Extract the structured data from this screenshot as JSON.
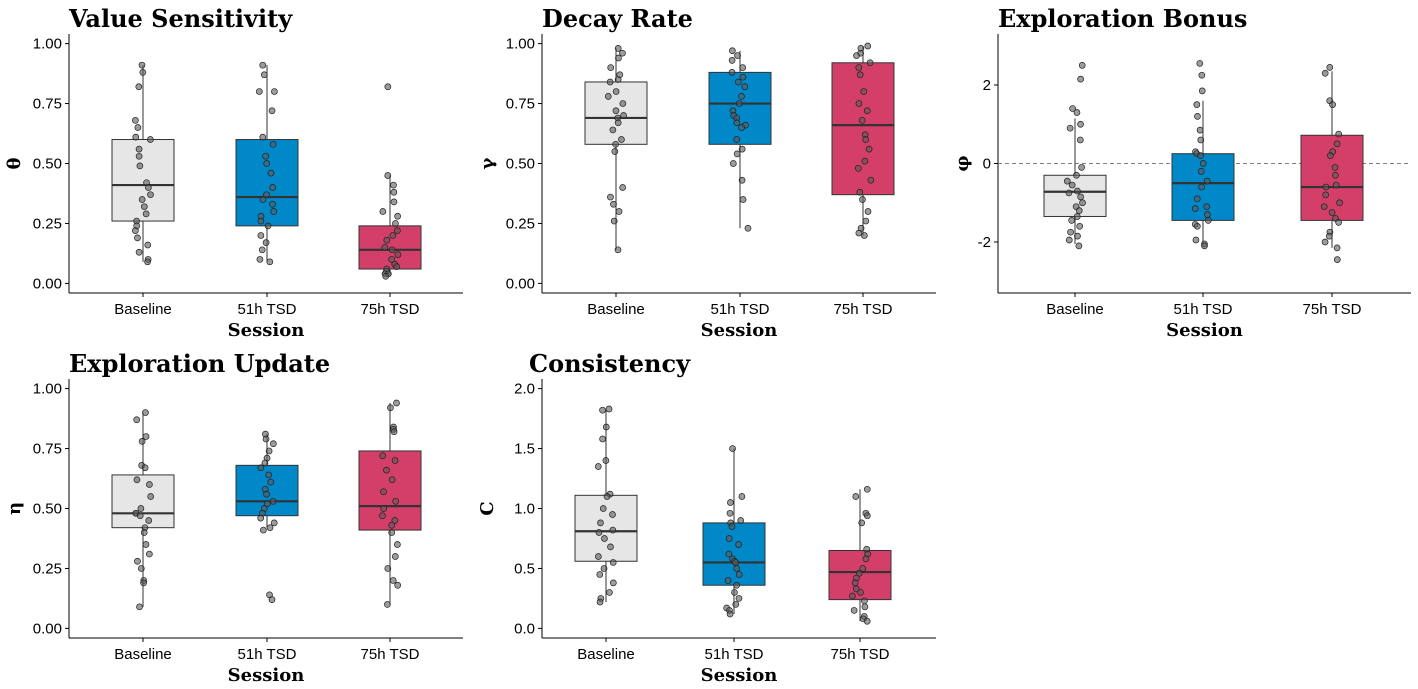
{
  "colors": {
    "Baseline": "#e6e6e6",
    "51h TSD": "#0088c9",
    "75h TSD": "#d43f69"
  },
  "chart_data": [
    {
      "type": "box",
      "title": "Value Sensitivity",
      "xlabel": "Session",
      "ylabel": "θ",
      "categories": [
        "Baseline",
        "51h TSD",
        "75h TSD"
      ],
      "yticks": [
        0.0,
        0.25,
        0.5,
        0.75,
        1.0
      ],
      "ytick_labels": [
        "0.00",
        "0.25",
        "0.50",
        "0.75",
        "1.00"
      ],
      "ylim": [
        -0.04,
        1.04
      ],
      "reference_line": null,
      "boxes": [
        {
          "category": "Baseline",
          "min": 0.09,
          "q1": 0.26,
          "median": 0.41,
          "q3": 0.6,
          "max": 0.91
        },
        {
          "category": "51h TSD",
          "min": 0.09,
          "q1": 0.24,
          "median": 0.36,
          "q3": 0.6,
          "max": 0.91
        },
        {
          "category": "75h TSD",
          "min": 0.03,
          "q1": 0.06,
          "median": 0.14,
          "q3": 0.24,
          "max": 0.45
        }
      ],
      "points": [
        [
          0.91,
          0.88,
          0.82,
          0.68,
          0.65,
          0.61,
          0.6,
          0.56,
          0.53,
          0.49,
          0.42,
          0.4,
          0.37,
          0.35,
          0.32,
          0.29,
          0.26,
          0.24,
          0.22,
          0.19,
          0.16,
          0.13,
          0.1,
          0.09
        ],
        [
          0.91,
          0.87,
          0.8,
          0.8,
          0.72,
          0.61,
          0.58,
          0.53,
          0.5,
          0.46,
          0.4,
          0.37,
          0.35,
          0.33,
          0.3,
          0.28,
          0.26,
          0.24,
          0.2,
          0.17,
          0.14,
          0.1,
          0.09
        ],
        [
          0.82,
          0.45,
          0.41,
          0.38,
          0.34,
          0.3,
          0.28,
          0.25,
          0.22,
          0.2,
          0.18,
          0.15,
          0.14,
          0.12,
          0.1,
          0.08,
          0.07,
          0.06,
          0.05,
          0.04,
          0.04,
          0.03
        ]
      ]
    },
    {
      "type": "box",
      "title": "Decay Rate",
      "xlabel": "Session",
      "ylabel": "γ",
      "categories": [
        "Baseline",
        "51h TSD",
        "75h TSD"
      ],
      "yticks": [
        0.0,
        0.25,
        0.5,
        0.75,
        1.0
      ],
      "ytick_labels": [
        "0.00",
        "0.25",
        "0.50",
        "0.75",
        "1.00"
      ],
      "ylim": [
        -0.04,
        1.04
      ],
      "reference_line": null,
      "boxes": [
        {
          "category": "Baseline",
          "min": 0.14,
          "q1": 0.58,
          "median": 0.69,
          "q3": 0.84,
          "max": 0.98
        },
        {
          "category": "51h TSD",
          "min": 0.23,
          "q1": 0.58,
          "median": 0.75,
          "q3": 0.88,
          "max": 0.97
        },
        {
          "category": "75h TSD",
          "min": 0.2,
          "q1": 0.37,
          "median": 0.66,
          "q3": 0.92,
          "max": 0.99
        }
      ],
      "points": [
        [
          0.98,
          0.96,
          0.94,
          0.9,
          0.87,
          0.85,
          0.84,
          0.8,
          0.78,
          0.75,
          0.72,
          0.7,
          0.69,
          0.67,
          0.64,
          0.6,
          0.58,
          0.55,
          0.4,
          0.36,
          0.33,
          0.3,
          0.26,
          0.14
        ],
        [
          0.97,
          0.95,
          0.93,
          0.9,
          0.88,
          0.86,
          0.84,
          0.82,
          0.78,
          0.75,
          0.72,
          0.7,
          0.69,
          0.67,
          0.66,
          0.65,
          0.6,
          0.56,
          0.54,
          0.5,
          0.43,
          0.35,
          0.23
        ],
        [
          0.99,
          0.98,
          0.96,
          0.95,
          0.92,
          0.9,
          0.87,
          0.8,
          0.75,
          0.72,
          0.68,
          0.62,
          0.6,
          0.56,
          0.51,
          0.48,
          0.43,
          0.38,
          0.35,
          0.3,
          0.26,
          0.23,
          0.21,
          0.2
        ]
      ]
    },
    {
      "type": "box",
      "title": "Exploration Bonus",
      "xlabel": "Session",
      "ylabel": "φ",
      "categories": [
        "Baseline",
        "51h TSD",
        "75h TSD"
      ],
      "yticks": [
        -2,
        0,
        2
      ],
      "ytick_labels": [
        "-2",
        "0",
        "2"
      ],
      "ylim": [
        -3.3,
        3.3
      ],
      "reference_line": 0,
      "boxes": [
        {
          "category": "Baseline",
          "min": -2.05,
          "q1": -1.35,
          "median": -0.72,
          "q3": -0.3,
          "max": 1.15
        },
        {
          "category": "51h TSD",
          "min": -2.05,
          "q1": -1.45,
          "median": -0.5,
          "q3": 0.25,
          "max": 1.6
        },
        {
          "category": "75h TSD",
          "min": -2.15,
          "q1": -1.45,
          "median": -0.6,
          "q3": 0.72,
          "max": 2.35
        }
      ],
      "points": [
        [
          2.5,
          2.15,
          1.4,
          1.3,
          1.0,
          0.9,
          0.6,
          -0.1,
          -0.3,
          -0.45,
          -0.55,
          -0.7,
          -0.75,
          -0.85,
          -1.0,
          -1.1,
          -1.2,
          -1.35,
          -1.45,
          -1.6,
          -1.75,
          -1.85,
          -1.95,
          -2.1
        ],
        [
          2.55,
          2.25,
          1.85,
          1.5,
          1.2,
          0.85,
          0.6,
          0.3,
          0.25,
          0.2,
          0.0,
          -0.2,
          -0.45,
          -0.6,
          -0.9,
          -1.1,
          -1.15,
          -1.3,
          -1.45,
          -1.55,
          -1.6,
          -1.95,
          -2.05,
          -2.1
        ],
        [
          2.45,
          2.3,
          1.6,
          1.5,
          0.75,
          0.5,
          0.3,
          0.2,
          -0.1,
          -0.3,
          -0.55,
          -0.6,
          -0.8,
          -1.0,
          -1.1,
          -1.25,
          -1.4,
          -1.5,
          -1.75,
          -1.85,
          -2.0,
          -2.15,
          -2.45
        ]
      ]
    },
    {
      "type": "box",
      "title": "Exploration Update",
      "xlabel": "Session",
      "ylabel": "η",
      "categories": [
        "Baseline",
        "51h TSD",
        "75h TSD"
      ],
      "yticks": [
        0.0,
        0.25,
        0.5,
        0.75,
        1.0
      ],
      "ytick_labels": [
        "0.00",
        "0.25",
        "0.50",
        "0.75",
        "1.00"
      ],
      "ylim": [
        -0.04,
        1.04
      ],
      "reference_line": null,
      "boxes": [
        {
          "category": "Baseline",
          "min": 0.09,
          "q1": 0.42,
          "median": 0.48,
          "q3": 0.64,
          "max": 0.9
        },
        {
          "category": "51h TSD",
          "min": 0.42,
          "q1": 0.47,
          "median": 0.53,
          "q3": 0.68,
          "max": 0.81
        },
        {
          "category": "75h TSD",
          "min": 0.1,
          "q1": 0.41,
          "median": 0.51,
          "q3": 0.74,
          "max": 0.94
        }
      ],
      "points": [
        [
          0.9,
          0.87,
          0.8,
          0.78,
          0.68,
          0.67,
          0.62,
          0.6,
          0.55,
          0.5,
          0.48,
          0.48,
          0.47,
          0.45,
          0.42,
          0.4,
          0.35,
          0.31,
          0.28,
          0.25,
          0.2,
          0.19,
          0.09
        ],
        [
          0.81,
          0.79,
          0.77,
          0.74,
          0.71,
          0.69,
          0.67,
          0.64,
          0.61,
          0.58,
          0.56,
          0.53,
          0.52,
          0.5,
          0.48,
          0.46,
          0.44,
          0.42,
          0.41,
          0.14,
          0.12
        ],
        [
          0.94,
          0.92,
          0.84,
          0.83,
          0.82,
          0.72,
          0.7,
          0.66,
          0.62,
          0.57,
          0.53,
          0.5,
          0.47,
          0.45,
          0.43,
          0.4,
          0.35,
          0.3,
          0.25,
          0.2,
          0.18,
          0.1
        ]
      ]
    },
    {
      "type": "box",
      "title": "Consistency",
      "xlabel": "Session",
      "ylabel": "C",
      "categories": [
        "Baseline",
        "51h TSD",
        "75h TSD"
      ],
      "yticks": [
        0.0,
        0.5,
        1.0,
        1.5,
        2.0
      ],
      "ytick_labels": [
        "0.0",
        "0.5",
        "1.0",
        "1.5",
        "2.0"
      ],
      "ylim": [
        -0.08,
        2.08
      ],
      "reference_line": null,
      "boxes": [
        {
          "category": "Baseline",
          "min": 0.22,
          "q1": 0.56,
          "median": 0.81,
          "q3": 1.11,
          "max": 1.82
        },
        {
          "category": "51h TSD",
          "min": 0.12,
          "q1": 0.36,
          "median": 0.55,
          "q3": 0.88,
          "max": 1.5
        },
        {
          "category": "75h TSD",
          "min": 0.06,
          "q1": 0.24,
          "median": 0.47,
          "q3": 0.65,
          "max": 1.16
        }
      ],
      "points": [
        [
          1.83,
          1.82,
          1.68,
          1.58,
          1.4,
          1.35,
          1.12,
          1.1,
          1.0,
          0.95,
          0.88,
          0.82,
          0.8,
          0.75,
          0.68,
          0.6,
          0.55,
          0.5,
          0.45,
          0.38,
          0.3,
          0.25,
          0.22
        ],
        [
          1.5,
          1.1,
          1.05,
          0.96,
          0.9,
          0.88,
          0.85,
          0.75,
          0.7,
          0.62,
          0.58,
          0.56,
          0.55,
          0.5,
          0.45,
          0.4,
          0.36,
          0.3,
          0.25,
          0.2,
          0.17,
          0.15,
          0.12
        ],
        [
          1.16,
          1.1,
          0.96,
          0.94,
          0.88,
          0.66,
          0.62,
          0.58,
          0.5,
          0.46,
          0.42,
          0.38,
          0.33,
          0.3,
          0.27,
          0.23,
          0.18,
          0.15,
          0.1,
          0.08,
          0.06
        ]
      ]
    }
  ]
}
